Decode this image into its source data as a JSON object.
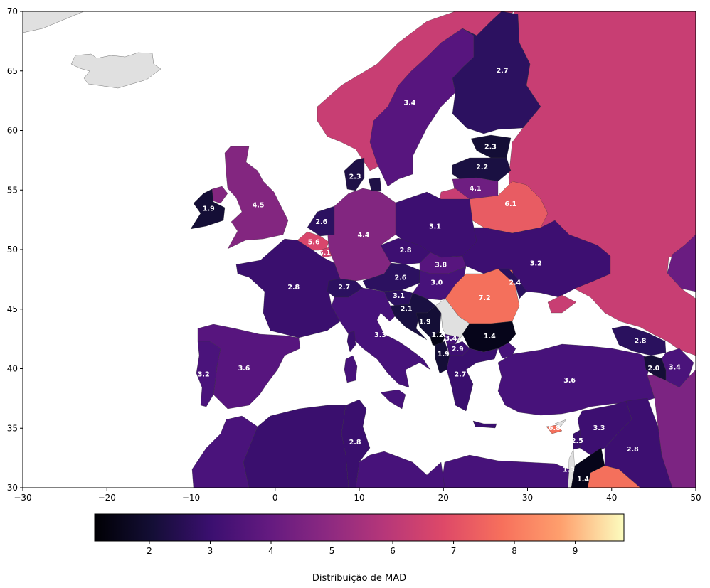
{
  "chart_data": {
    "type": "choropleth",
    "xlim": [
      -30,
      50
    ],
    "ylim": [
      30,
      70
    ],
    "xticks": [
      "−30",
      "−20",
      "−10",
      "0",
      "10",
      "20",
      "30",
      "40",
      "50"
    ],
    "xtick_values": [
      -30,
      -20,
      -10,
      0,
      10,
      20,
      30,
      40,
      50
    ],
    "yticks": [
      "30",
      "35",
      "40",
      "45",
      "50",
      "55",
      "60",
      "65",
      "70"
    ],
    "ytick_values": [
      30,
      35,
      40,
      45,
      50,
      55,
      60,
      65,
      70
    ],
    "colorbar": {
      "range": [
        1.1,
        9.8
      ],
      "ticks": [
        "2",
        "3",
        "4",
        "5",
        "6",
        "7",
        "8",
        "9"
      ],
      "tick_values": [
        2,
        3,
        4,
        5,
        6,
        7,
        8,
        9
      ],
      "label": "Distribuição de MAD",
      "colormap": "magma"
    },
    "no_data_color": "#e0e0e0",
    "regions": [
      {
        "name": "Iceland",
        "lon": -18.5,
        "lat": 65.0,
        "label": "",
        "value": null
      },
      {
        "name": "Greenland",
        "lon": -27.0,
        "lat": 69.5,
        "label": "",
        "value": null
      },
      {
        "name": "Norway",
        "lon": 10.5,
        "lat": 62.5,
        "label": "",
        "value": 5.5
      },
      {
        "name": "Sweden",
        "lon": 16.0,
        "lat": 62.3,
        "label": "3.4",
        "value": 3.4
      },
      {
        "name": "Finland",
        "lon": 27.0,
        "lat": 65.0,
        "label": "2.7",
        "value": 2.7
      },
      {
        "name": "Russia",
        "lon": 42.0,
        "lat": 58.0,
        "label": "",
        "value": 5.5
      },
      {
        "name": "Estonia",
        "lon": 25.6,
        "lat": 58.6,
        "label": "2.3",
        "value": 2.3
      },
      {
        "name": "Latvia",
        "lon": 24.6,
        "lat": 56.9,
        "label": "2.2",
        "value": 2.2
      },
      {
        "name": "Lithuania",
        "lon": 23.8,
        "lat": 55.1,
        "label": "4.1",
        "value": 4.1
      },
      {
        "name": "Belarus",
        "lon": 28.0,
        "lat": 53.8,
        "label": "6.1",
        "value": 6.1
      },
      {
        "name": "Ukraine",
        "lon": 31.0,
        "lat": 48.8,
        "label": "3.2",
        "value": 3.2
      },
      {
        "name": "Poland",
        "lon": 19.0,
        "lat": 51.9,
        "label": "3.1",
        "value": 3.1
      },
      {
        "name": "Germany",
        "lon": 10.5,
        "lat": 51.2,
        "label": "4.4",
        "value": 4.4
      },
      {
        "name": "Denmark",
        "lon": 9.5,
        "lat": 56.1,
        "label": "2.3",
        "value": 2.3
      },
      {
        "name": "Netherlands",
        "lon": 5.5,
        "lat": 52.3,
        "label": "2.6",
        "value": 2.6
      },
      {
        "name": "Belgium",
        "lon": 4.6,
        "lat": 50.6,
        "label": "5.6",
        "value": 5.6
      },
      {
        "name": "Luxembourg",
        "lon": 5.9,
        "lat": 49.7,
        "label": "5.1",
        "value": 5.1
      },
      {
        "name": "United Kingdom",
        "lon": -2.0,
        "lat": 53.7,
        "label": "4.5",
        "value": 4.5
      },
      {
        "name": "Ireland",
        "lon": -7.9,
        "lat": 53.4,
        "label": "1.9",
        "value": 1.9
      },
      {
        "name": "France",
        "lon": 2.2,
        "lat": 46.8,
        "label": "2.8",
        "value": 2.8
      },
      {
        "name": "Czechia",
        "lon": 15.5,
        "lat": 49.9,
        "label": "2.8",
        "value": 2.8
      },
      {
        "name": "Slovakia",
        "lon": 19.7,
        "lat": 48.7,
        "label": "3.8",
        "value": 3.8
      },
      {
        "name": "Austria",
        "lon": 14.9,
        "lat": 47.6,
        "label": "2.6",
        "value": 2.6
      },
      {
        "name": "Switzerland",
        "lon": 8.2,
        "lat": 46.8,
        "label": "2.7",
        "value": 2.7
      },
      {
        "name": "Hungary",
        "lon": 19.2,
        "lat": 47.2,
        "label": "3.0",
        "value": 3.0
      },
      {
        "name": "Moldova",
        "lon": 28.5,
        "lat": 47.2,
        "label": "2.4",
        "value": 2.4
      },
      {
        "name": "Romania",
        "lon": 24.9,
        "lat": 45.9,
        "label": "7.2",
        "value": 7.2
      },
      {
        "name": "Slovenia",
        "lon": 14.7,
        "lat": 46.1,
        "label": "3.1",
        "value": 3.1
      },
      {
        "name": "Croatia",
        "lon": 15.6,
        "lat": 45.0,
        "label": "2.1",
        "value": 2.1
      },
      {
        "name": "Bosnia and Herzegovina",
        "lon": 17.8,
        "lat": 43.9,
        "label": "1.9",
        "value": 1.9
      },
      {
        "name": "Serbia",
        "lon": 21.0,
        "lat": 44.0,
        "label": "",
        "value": null
      },
      {
        "name": "Montenegro",
        "lon": 19.3,
        "lat": 42.8,
        "label": "1.2",
        "value": 1.2
      },
      {
        "name": "Kosovo",
        "lon": 20.9,
        "lat": 42.5,
        "label": "3.4",
        "value": 3.4
      },
      {
        "name": "North Macedonia",
        "lon": 21.7,
        "lat": 41.6,
        "label": "2.9",
        "value": 2.9
      },
      {
        "name": "Albania",
        "lon": 20.0,
        "lat": 41.2,
        "label": "1.9",
        "value": 1.9
      },
      {
        "name": "Bulgaria",
        "lon": 25.5,
        "lat": 42.7,
        "label": "1.4",
        "value": 1.4
      },
      {
        "name": "Greece",
        "lon": 22.0,
        "lat": 39.5,
        "label": "2.7",
        "value": 2.7
      },
      {
        "name": "Italy",
        "lon": 12.5,
        "lat": 42.8,
        "label": "3.3",
        "value": 3.3
      },
      {
        "name": "Spain",
        "lon": -3.7,
        "lat": 40.0,
        "label": "3.6",
        "value": 3.6
      },
      {
        "name": "Portugal",
        "lon": -8.5,
        "lat": 39.5,
        "label": "3.2",
        "value": 3.2
      },
      {
        "name": "Turkey",
        "lon": 35.0,
        "lat": 39.0,
        "label": "3.6",
        "value": 3.6
      },
      {
        "name": "Georgia",
        "lon": 43.4,
        "lat": 42.3,
        "label": "2.8",
        "value": 2.8
      },
      {
        "name": "Armenia",
        "lon": 45.0,
        "lat": 40.0,
        "label": "2.0",
        "value": 2.0
      },
      {
        "name": "Azerbaijan",
        "lon": 47.5,
        "lat": 40.1,
        "label": "3.4",
        "value": 3.4
      },
      {
        "name": "Cyprus",
        "lon": 33.2,
        "lat": 35.0,
        "label": "6.8",
        "value": 6.8
      },
      {
        "name": "Syria",
        "lon": 38.5,
        "lat": 35.0,
        "label": "3.3",
        "value": 3.3
      },
      {
        "name": "Lebanon",
        "lon": 35.9,
        "lat": 33.9,
        "label": "2.5",
        "value": 2.5
      },
      {
        "name": "Israel",
        "lon": 34.9,
        "lat": 31.5,
        "label": "1.3",
        "value": 1.3
      },
      {
        "name": "Jordan",
        "lon": 36.6,
        "lat": 30.7,
        "label": "1.4",
        "value": 1.4
      },
      {
        "name": "Iraq",
        "lon": 42.5,
        "lat": 33.2,
        "label": "2.8",
        "value": 2.8
      },
      {
        "name": "Saudi Arabia",
        "lon": 40.0,
        "lat": 30.5,
        "label": "",
        "value": 6.8
      },
      {
        "name": "Iran",
        "lon": 49.0,
        "lat": 34.0,
        "label": "",
        "value": 4.3
      },
      {
        "name": "Kazakhstan",
        "lon": 48.5,
        "lat": 49.0,
        "label": "",
        "value": 4.0
      },
      {
        "name": "Tunisia",
        "lon": 9.5,
        "lat": 33.8,
        "label": "2.8",
        "value": 2.8
      },
      {
        "name": "Algeria",
        "lon": 2.0,
        "lat": 32.0,
        "label": "",
        "value": 3.0
      },
      {
        "name": "Morocco",
        "lon": -6.0,
        "lat": 31.5,
        "label": "",
        "value": 3.2
      },
      {
        "name": "Libya",
        "lon": 17.0,
        "lat": 31.0,
        "label": "",
        "value": 3.2
      },
      {
        "name": "Egypt",
        "lon": 29.0,
        "lat": 30.8,
        "label": "",
        "value": 3.3
      }
    ]
  }
}
